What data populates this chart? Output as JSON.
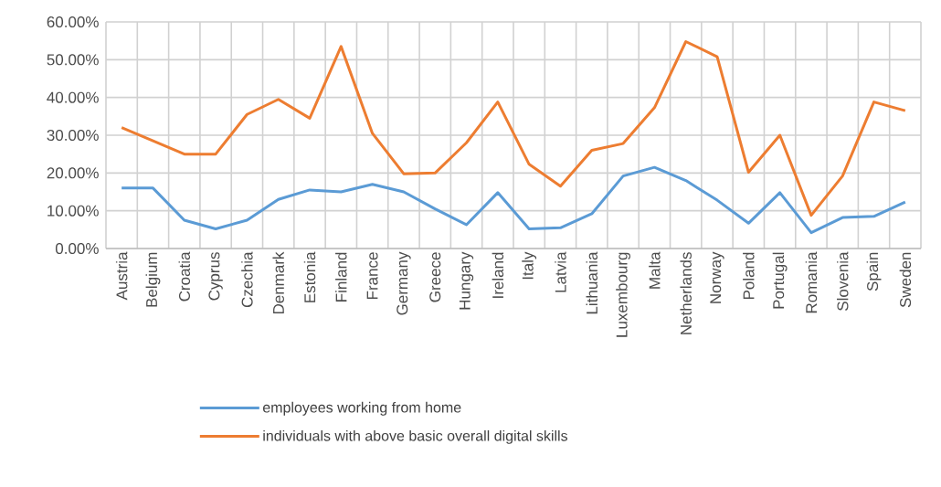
{
  "chart_data": {
    "type": "line",
    "categories": [
      "Austria",
      "Belgium",
      "Croatia",
      "Cyprus",
      "Czechia",
      "Denmark",
      "Estonia",
      "Finland",
      "France",
      "Germany",
      "Greece",
      "Hungary",
      "Ireland",
      "Italy",
      "Latvia",
      "Lithuania",
      "Luxembourg",
      "Malta",
      "Netherlands",
      "Norway",
      "Poland",
      "Portugal",
      "Romania",
      "Slovenia",
      "Spain",
      "Sweden"
    ],
    "series": [
      {
        "name": "employees working from home",
        "color": "#5b9bd5",
        "values": [
          16,
          16,
          7.5,
          5.2,
          7.5,
          13,
          15.5,
          15,
          17,
          15,
          10.5,
          6.3,
          14.8,
          5.2,
          5.5,
          9.2,
          19.2,
          21.5,
          18,
          12.8,
          6.7,
          14.8,
          4.2,
          8.2,
          8.5,
          12.3
        ]
      },
      {
        "name": "individuals with above basic overall digital skills",
        "color": "#ed7d31",
        "values": [
          32,
          28.5,
          25,
          25,
          35.5,
          39.5,
          34.5,
          53.5,
          30.5,
          19.8,
          20,
          28,
          38.8,
          22.3,
          16.5,
          26,
          27.8,
          37.3,
          54.8,
          50.8,
          20.2,
          30,
          8.8,
          19.2,
          38.8,
          36.5
        ]
      }
    ],
    "ylim": [
      0,
      60
    ],
    "yticks": [
      {
        "value": 0,
        "label": "0.00%"
      },
      {
        "value": 10,
        "label": "10.00%"
      },
      {
        "value": 20,
        "label": "20.00%"
      },
      {
        "value": 30,
        "label": "30.00%"
      },
      {
        "value": 40,
        "label": "40.00%"
      },
      {
        "value": 50,
        "label": "50.00%"
      },
      {
        "value": 60,
        "label": "60.00%"
      }
    ],
    "grid": true,
    "legend": "bottom",
    "marker": "none",
    "line_style": "solid"
  }
}
